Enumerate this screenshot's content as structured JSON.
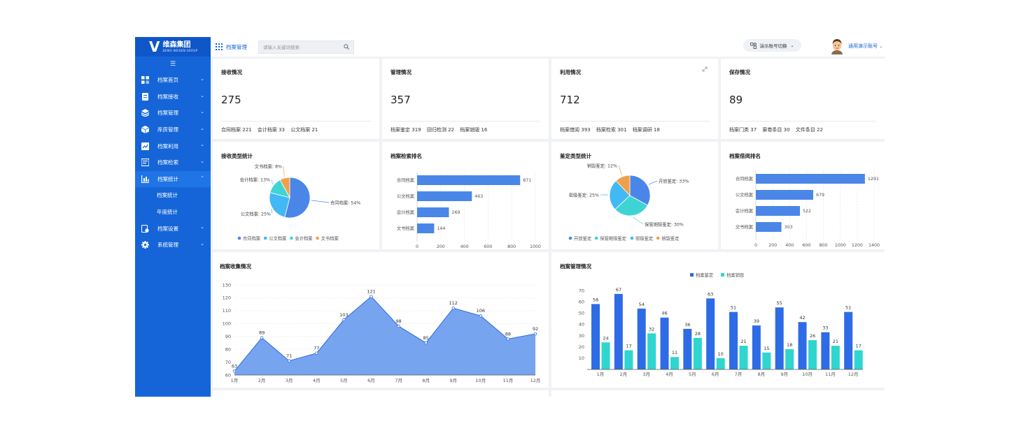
{
  "brand": {
    "name": "维森集团",
    "subtitle": "DEMO WEISEN GROUP"
  },
  "sidebar": {
    "items": [
      {
        "label": "档案首页",
        "icon": "dashboard-icon"
      },
      {
        "label": "档案接收",
        "icon": "receive-icon"
      },
      {
        "label": "档案管理",
        "icon": "layers-icon"
      },
      {
        "label": "库房管理",
        "icon": "cube-icon"
      },
      {
        "label": "档案利用",
        "icon": "usage-icon"
      },
      {
        "label": "档案检索",
        "icon": "search-list-icon"
      },
      {
        "label": "档案统计",
        "icon": "bar-chart-icon"
      }
    ],
    "sub_items": [
      "档案统计",
      "年度统计"
    ],
    "items_after": [
      {
        "label": "档案设置",
        "icon": "settings-doc-icon"
      },
      {
        "label": "系统管理",
        "icon": "gear-icon"
      }
    ]
  },
  "topbar": {
    "breadcrumb": "档案管理",
    "search_placeholder": "请输入关键词搜索",
    "account_switch": "演示账号切换",
    "username": "通用演示账号"
  },
  "cards": [
    {
      "title": "接收情况",
      "total": "275",
      "stats": [
        {
          "label": "合同档案",
          "value": "221"
        },
        {
          "label": "会计档案",
          "value": "33"
        },
        {
          "label": "公文档案",
          "value": "21"
        }
      ]
    },
    {
      "title": "管理情况",
      "total": "357",
      "stats": [
        {
          "label": "档案鉴定",
          "value": "319"
        },
        {
          "label": "回归检测",
          "value": "22"
        },
        {
          "label": "档案销毁",
          "value": "16"
        }
      ]
    },
    {
      "title": "利用情况",
      "total": "712",
      "stats": [
        {
          "label": "档案借阅",
          "value": "393"
        },
        {
          "label": "档案检索",
          "value": "301"
        },
        {
          "label": "档案调研",
          "value": "18"
        }
      ]
    },
    {
      "title": "保存情况",
      "total": "89",
      "stats": [
        {
          "label": "档案门类",
          "value": "37"
        },
        {
          "label": "案卷条目",
          "value": "30"
        },
        {
          "label": "文件条目",
          "value": "22"
        }
      ]
    }
  ],
  "panels": {
    "receive_type": "接收类型统计",
    "retrieval_rank": "档案检索排名",
    "appraisal_type": "鉴定类型统计",
    "borrow_rank": "档案借阅排名",
    "collection": "档案收集情况",
    "management": "档案管理情况"
  },
  "chart_data": [
    {
      "type": "pie",
      "title": "接收类型统计",
      "slices": [
        {
          "name": "合同档案",
          "value": 54,
          "label": "合同档案: 54%",
          "color": "#4a86e8"
        },
        {
          "name": "公文档案",
          "value": 25,
          "label": "公文档案: 25%",
          "color": "#42b8f4"
        },
        {
          "name": "会计档案",
          "value": 13,
          "label": "会计档案: 13%",
          "color": "#3ed4d4"
        },
        {
          "name": "文书档案",
          "value": 8,
          "label": "文书档案: 8%",
          "color": "#f0a04b"
        }
      ],
      "legend": [
        "合同档案",
        "公文档案",
        "会计档案",
        "文书档案"
      ],
      "legend_position": "bottom"
    },
    {
      "type": "bar",
      "orientation": "horizontal",
      "title": "档案检索排名",
      "categories": [
        "合同档案",
        "公文档案",
        "会计档案",
        "文书档案"
      ],
      "values": [
        871,
        463,
        269,
        144
      ],
      "xlim": [
        0,
        1000
      ],
      "xticks": [
        "0",
        "200",
        "400",
        "600",
        "800",
        "1000"
      ],
      "color": "#4a86e8"
    },
    {
      "type": "pie",
      "title": "鉴定类型统计",
      "slices": [
        {
          "name": "开放鉴定",
          "value": 33,
          "label": "开放鉴定: 33%",
          "color": "#4a86e8"
        },
        {
          "name": "保管期限鉴定",
          "value": 30,
          "label": "保管期限鉴定: 30%",
          "color": "#3ed4d4"
        },
        {
          "name": "密级鉴定",
          "value": 25,
          "label": "密级鉴定: 25%",
          "color": "#42b8f4"
        },
        {
          "name": "销毁鉴定",
          "value": 12,
          "label": "销毁鉴定: 12%",
          "color": "#f0a04b"
        }
      ],
      "legend": [
        "开放鉴定",
        "保管期限鉴定",
        "密级鉴定",
        "销毁鉴定"
      ],
      "legend_position": "bottom"
    },
    {
      "type": "bar",
      "orientation": "horizontal",
      "title": "档案借阅排名",
      "categories": [
        "合同档案",
        "公文档案",
        "会计档案",
        "文书档案"
      ],
      "values": [
        1291,
        679,
        522,
        303
      ],
      "xlim": [
        0,
        1400
      ],
      "xticks": [
        "0",
        "200",
        "400",
        "600",
        "800",
        "1000",
        "1200",
        "1400"
      ],
      "color": "#4a86e8"
    },
    {
      "type": "area",
      "title": "档案收集情况",
      "categories": [
        "1月",
        "2月",
        "3月",
        "4月",
        "5月",
        "6月",
        "7月",
        "8月",
        "9月",
        "10月",
        "11月",
        "12月"
      ],
      "values": [
        63,
        89,
        71,
        77,
        103,
        121,
        98,
        85,
        112,
        106,
        88,
        92
      ],
      "ylim": [
        60,
        130
      ],
      "yticks": [
        "60",
        "70",
        "80",
        "90",
        "100",
        "110",
        "120",
        "130"
      ],
      "color": "#4a86e8",
      "grid": true
    },
    {
      "type": "bar",
      "title": "档案管理情况",
      "categories": [
        "1月",
        "2月",
        "3月",
        "4月",
        "5月",
        "6月",
        "7月",
        "8月",
        "9月",
        "10月",
        "11月",
        "12月"
      ],
      "series": [
        {
          "name": "档案鉴定",
          "values": [
            58,
            67,
            54,
            46,
            36,
            63,
            51,
            39,
            55,
            42,
            33,
            51
          ],
          "color": "#2e6be6"
        },
        {
          "name": "档案销毁",
          "values": [
            24,
            17,
            32,
            11,
            28,
            10,
            21,
            15,
            18,
            26,
            21,
            17
          ],
          "color": "#2ed6cf"
        }
      ],
      "ylim": [
        0,
        70
      ],
      "yticks": [
        "10",
        "20",
        "30",
        "40",
        "50",
        "60",
        "70"
      ],
      "legend_position": "top"
    }
  ]
}
